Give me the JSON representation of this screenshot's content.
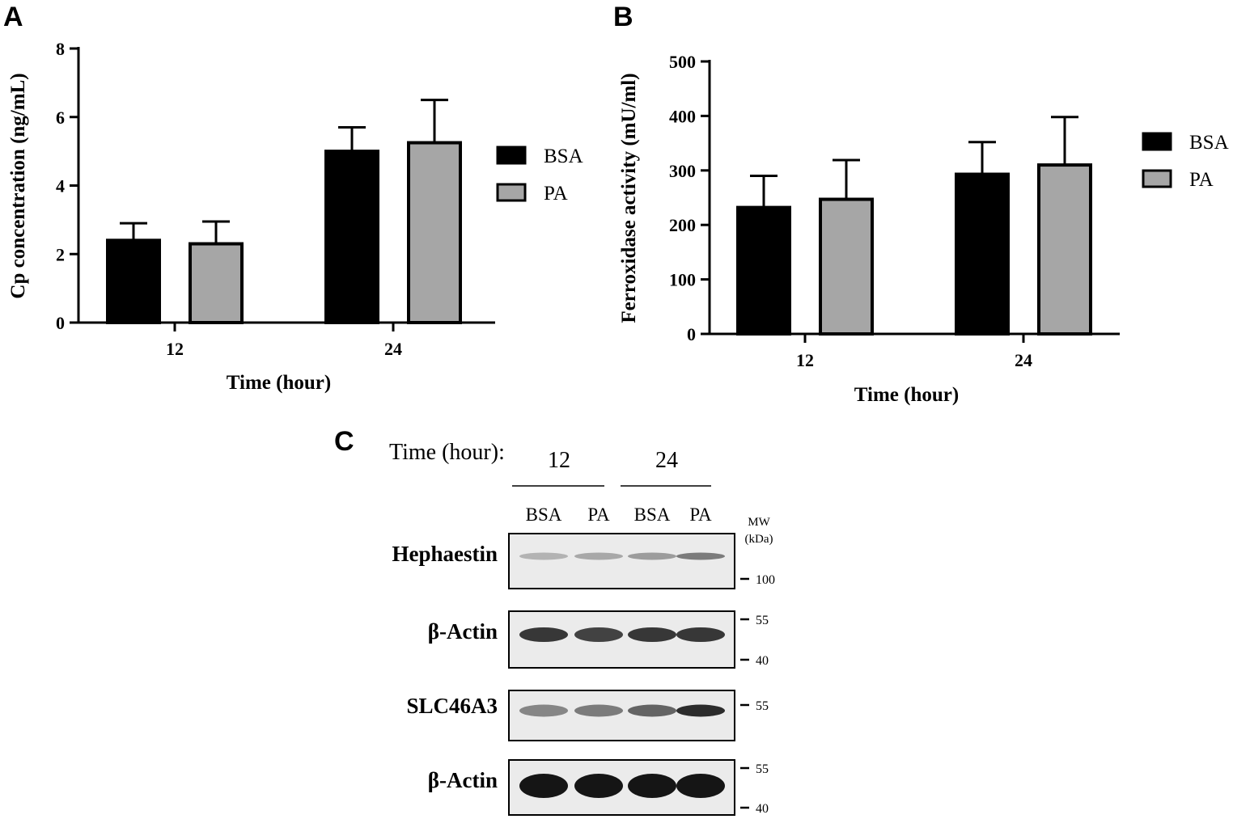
{
  "panels": {
    "A": {
      "letter": "A"
    },
    "B": {
      "letter": "B"
    },
    "C": {
      "letter": "C"
    }
  },
  "chart_data": [
    {
      "type": "bar",
      "panel": "A",
      "categories": [
        "12",
        "24"
      ],
      "series": [
        {
          "name": "BSA",
          "values": [
            2.4,
            5.0
          ],
          "errors": [
            0.5,
            0.7
          ],
          "color": "#000000"
        },
        {
          "name": "PA",
          "values": [
            2.3,
            5.25
          ],
          "errors": [
            0.65,
            1.25
          ],
          "color": "#a6a6a6"
        }
      ],
      "xlabel": "Time (hour)",
      "ylabel": "Cp concentration (ng/mL)",
      "ylim": [
        0,
        8
      ],
      "yticks": [
        0,
        2,
        4,
        6,
        8
      ],
      "legend": "right",
      "grid": false
    },
    {
      "type": "bar",
      "panel": "B",
      "categories": [
        "12",
        "24"
      ],
      "series": [
        {
          "name": "BSA",
          "values": [
            232,
            293
          ],
          "errors": [
            58,
            59
          ],
          "color": "#000000"
        },
        {
          "name": "PA",
          "values": [
            247,
            310
          ],
          "errors": [
            72,
            88
          ],
          "color": "#a6a6a6"
        }
      ],
      "xlabel": "Time (hour)",
      "ylabel": "Ferroxidase activity (mU/ml)",
      "ylim": [
        0,
        500
      ],
      "yticks": [
        0,
        100,
        200,
        300,
        400,
        500
      ],
      "legend": "right",
      "grid": false
    }
  ],
  "western_blot": {
    "time_label": "Time (hour):",
    "time_groups": [
      "12",
      "24"
    ],
    "lane_labels": [
      "BSA",
      "PA",
      "BSA",
      "PA"
    ],
    "mw_label_line1": "MW",
    "mw_label_line2": "(kDa)",
    "blots": [
      {
        "label": "Hephaestin",
        "markers": [
          "100"
        ],
        "band_intensity": [
          0.25,
          0.3,
          0.35,
          0.5
        ]
      },
      {
        "label": "β-Actin",
        "markers": [
          "55",
          "40"
        ],
        "band_intensity": [
          0.8,
          0.75,
          0.8,
          0.8
        ]
      },
      {
        "label": "SLC46A3",
        "markers": [
          "55"
        ],
        "band_intensity": [
          0.45,
          0.5,
          0.6,
          0.85
        ]
      },
      {
        "label": "β-Actin",
        "markers": [
          "55",
          "40"
        ],
        "band_intensity": [
          0.95,
          0.95,
          0.95,
          0.95
        ]
      }
    ]
  }
}
